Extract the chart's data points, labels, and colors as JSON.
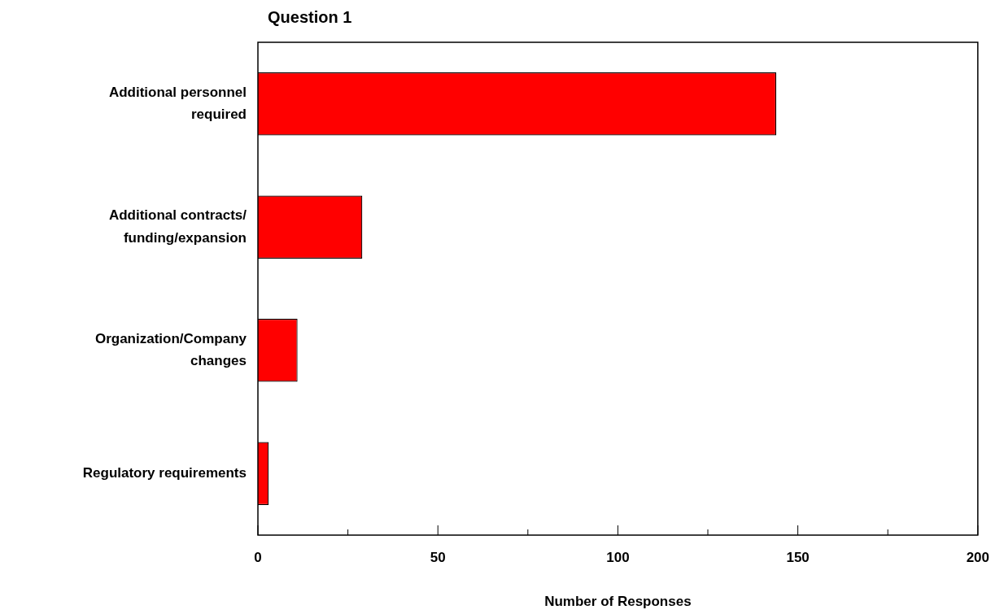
{
  "chart_data": {
    "type": "bar",
    "orientation": "horizontal",
    "title": "Question 1",
    "xlabel": "Number of Responses",
    "categories": [
      "Additional personnel\nrequired",
      "Additional contracts/\nfunding/expansion",
      "Organization/Company\nchanges",
      "Regulatory requirements"
    ],
    "values": [
      144,
      29,
      11,
      3
    ],
    "color": "#ff0000",
    "xlim": [
      0,
      200
    ],
    "xticks": [
      0,
      {
        "value": 25,
        "label": null
      },
      50,
      {
        "value": 75,
        "label": null
      },
      100,
      {
        "value": 125,
        "label": null
      },
      150,
      {
        "value": 175,
        "label": null
      },
      200
    ],
    "grid": false,
    "legend": false
  }
}
